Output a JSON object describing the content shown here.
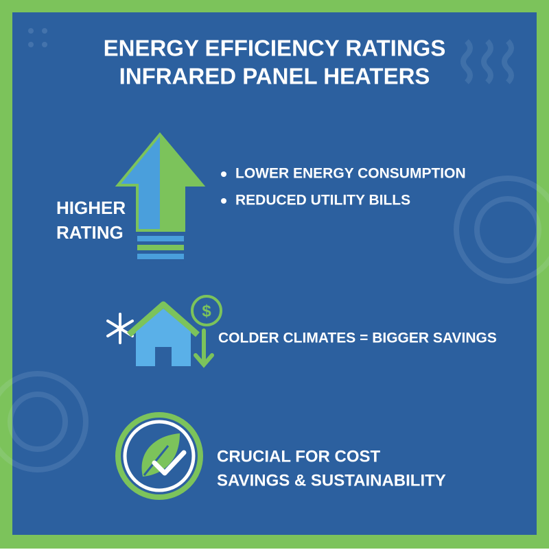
{
  "header": {
    "title_lines": [
      "ENERGY EFFICIENCY RATINGS",
      "INFRARED PANEL HEATERS"
    ]
  },
  "sections": [
    {
      "label_lines": [
        "HIGHER",
        "RATING"
      ],
      "bullets": [
        "LOWER ENERGY CONSUMPTION",
        "REDUCED UTILITY BILLS"
      ]
    },
    {
      "text": "COLDER CLIMATES = BIGGER SAVINGS"
    },
    {
      "text_lines": [
        "CRUCIAL FOR COST",
        "SAVINGS & SUSTAINABILITY"
      ]
    }
  ]
}
